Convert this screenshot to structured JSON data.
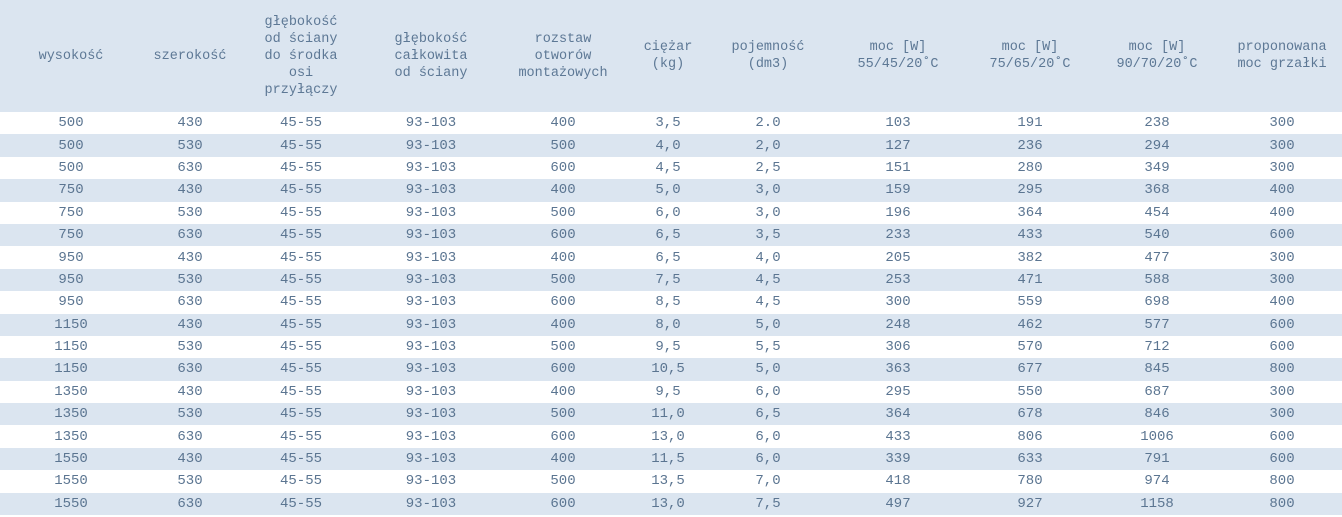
{
  "table": {
    "headers": [
      "wysokość",
      "szerokość",
      "głębokość\nod ściany\ndo środka\nosi\nprzyłączy",
      "głębokość\ncałkowita\nod ściany",
      "rozstaw\notworów\nmontażowych",
      "ciężar\n(kg)",
      "pojemność\n(dm3)",
      "moc [W]\n55/45/20˚C",
      "moc [W]\n75/65/20˚C",
      "moc [W]\n90/70/20˚C",
      "proponowana\nmoc grzałki"
    ],
    "rows": [
      [
        "500",
        "430",
        "45-55",
        "93-103",
        "400",
        "3,5",
        "2.0",
        "103",
        "191",
        "238",
        "300"
      ],
      [
        "500",
        "530",
        "45-55",
        "93-103",
        "500",
        "4,0",
        "2,0",
        "127",
        "236",
        "294",
        "300"
      ],
      [
        "500",
        "630",
        "45-55",
        "93-103",
        "600",
        "4,5",
        "2,5",
        "151",
        "280",
        "349",
        "300"
      ],
      [
        "750",
        "430",
        "45-55",
        "93-103",
        "400",
        "5,0",
        "3,0",
        "159",
        "295",
        "368",
        "400"
      ],
      [
        "750",
        "530",
        "45-55",
        "93-103",
        "500",
        "6,0",
        "3,0",
        "196",
        "364",
        "454",
        "400"
      ],
      [
        "750",
        "630",
        "45-55",
        "93-103",
        "600",
        "6,5",
        "3,5",
        "233",
        "433",
        "540",
        "600"
      ],
      [
        "950",
        "430",
        "45-55",
        "93-103",
        "400",
        "6,5",
        "4,0",
        "205",
        "382",
        "477",
        "300"
      ],
      [
        "950",
        "530",
        "45-55",
        "93-103",
        "500",
        "7,5",
        "4,5",
        "253",
        "471",
        "588",
        "300"
      ],
      [
        "950",
        "630",
        "45-55",
        "93-103",
        "600",
        "8,5",
        "4,5",
        "300",
        "559",
        "698",
        "400"
      ],
      [
        "1150",
        "430",
        "45-55",
        "93-103",
        "400",
        "8,0",
        "5,0",
        "248",
        "462",
        "577",
        "600"
      ],
      [
        "1150",
        "530",
        "45-55",
        "93-103",
        "500",
        "9,5",
        "5,5",
        "306",
        "570",
        "712",
        "600"
      ],
      [
        "1150",
        "630",
        "45-55",
        "93-103",
        "600",
        "10,5",
        "5,0",
        "363",
        "677",
        "845",
        "800"
      ],
      [
        "1350",
        "430",
        "45-55",
        "93-103",
        "400",
        "9,5",
        "6,0",
        "295",
        "550",
        "687",
        "300"
      ],
      [
        "1350",
        "530",
        "45-55",
        "93-103",
        "500",
        "11,0",
        "6,5",
        "364",
        "678",
        "846",
        "300"
      ],
      [
        "1350",
        "630",
        "45-55",
        "93-103",
        "600",
        "13,0",
        "6,0",
        "433",
        "806",
        "1006",
        "600"
      ],
      [
        "1550",
        "430",
        "45-55",
        "93-103",
        "400",
        "11,5",
        "6,0",
        "339",
        "633",
        "791",
        "600"
      ],
      [
        "1550",
        "530",
        "45-55",
        "93-103",
        "500",
        "13,5",
        "7,0",
        "418",
        "780",
        "974",
        "800"
      ],
      [
        "1550",
        "630",
        "45-55",
        "93-103",
        "600",
        "13,0",
        "7,5",
        "497",
        "927",
        "1158",
        "800"
      ]
    ]
  },
  "colors": {
    "header_bg": "#dbe5f0",
    "stripe_bg": "#dbe5f0",
    "text": "#5b7591"
  }
}
